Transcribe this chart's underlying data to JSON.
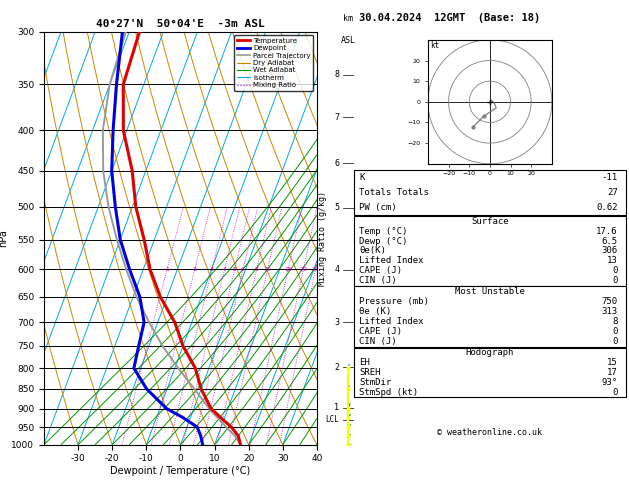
{
  "title_left": "40°27'N  50°04'E  -3m ASL",
  "title_right": "30.04.2024  12GMT  (Base: 18)",
  "xlabel": "Dewpoint / Temperature (°C)",
  "ylabel_left": "hPa",
  "pressure_ticks": [
    300,
    350,
    400,
    450,
    500,
    550,
    600,
    650,
    700,
    750,
    800,
    850,
    900,
    950,
    1000
  ],
  "temp_ticks": [
    -30,
    -20,
    -10,
    0,
    10,
    20,
    30,
    40
  ],
  "km_ticks": [
    1,
    2,
    3,
    4,
    5,
    6,
    7,
    8
  ],
  "km_pressures": [
    898,
    798,
    700,
    601,
    501,
    440,
    385,
    340
  ],
  "lcl_pressure": 930,
  "mixing_ratio_vals": [
    1,
    2,
    3,
    4,
    5,
    6,
    8,
    10,
    15,
    20,
    25
  ],
  "p_min": 300,
  "p_max": 1000,
  "t_min": -40,
  "t_max": 40,
  "skew": 45.0,
  "colors": {
    "temperature": "#dd0000",
    "dewpoint": "#0000dd",
    "parcel": "#999999",
    "dry_adiabat": "#cc8800",
    "wet_adiabat": "#009900",
    "isotherm": "#00aadd",
    "mixing_ratio": "#cc00cc",
    "background": "#ffffff",
    "grid": "#000000"
  },
  "legend_entries": [
    {
      "label": "Temperature",
      "color": "#dd0000",
      "lw": 2.0,
      "ls": "solid"
    },
    {
      "label": "Dewpoint",
      "color": "#0000dd",
      "lw": 2.0,
      "ls": "solid"
    },
    {
      "label": "Parcel Trajectory",
      "color": "#999999",
      "lw": 1.2,
      "ls": "solid"
    },
    {
      "label": "Dry Adiabat",
      "color": "#cc8800",
      "lw": 0.8,
      "ls": "solid"
    },
    {
      "label": "Wet Adiabat",
      "color": "#009900",
      "lw": 0.8,
      "ls": "solid"
    },
    {
      "label": "Isotherm",
      "color": "#00aadd",
      "lw": 0.8,
      "ls": "solid"
    },
    {
      "label": "Mixing Ratio",
      "color": "#cc00cc",
      "lw": 0.8,
      "ls": "dotted"
    }
  ],
  "temperature_profile": {
    "pressure": [
      1000,
      975,
      950,
      925,
      900,
      850,
      800,
      750,
      700,
      650,
      600,
      550,
      500,
      450,
      400,
      350,
      300
    ],
    "temp": [
      17.6,
      16.0,
      13.0,
      9.0,
      5.0,
      0.0,
      -4.0,
      -10.0,
      -15.0,
      -22.0,
      -28.0,
      -33.0,
      -39.0,
      -44.0,
      -51.0,
      -56.0,
      -57.0
    ]
  },
  "dewpoint_profile": {
    "pressure": [
      1000,
      975,
      950,
      925,
      900,
      850,
      800,
      750,
      700,
      650,
      600,
      550,
      500,
      450,
      400,
      350,
      300
    ],
    "temp": [
      6.5,
      5.0,
      3.0,
      -2.0,
      -8.0,
      -16.0,
      -22.0,
      -23.0,
      -24.0,
      -28.0,
      -34.0,
      -40.0,
      -45.0,
      -50.0,
      -54.0,
      -58.0,
      -62.0
    ]
  },
  "parcel_profile": {
    "pressure": [
      1000,
      975,
      950,
      925,
      900,
      850,
      800,
      750,
      700,
      650,
      600,
      550,
      500,
      450,
      400,
      350,
      300
    ],
    "temp": [
      17.6,
      15.0,
      11.5,
      8.0,
      4.5,
      -2.0,
      -9.0,
      -16.0,
      -22.5,
      -29.0,
      -35.0,
      -41.0,
      -47.0,
      -52.5,
      -57.0,
      -60.0,
      -61.0
    ]
  },
  "wind_levels_p": [
    1000,
    975,
    950,
    925,
    900,
    850,
    800
  ],
  "wind_levels_spd": [
    2,
    3,
    5,
    5,
    5,
    5,
    5
  ],
  "wind_levels_dir": [
    90,
    100,
    110,
    120,
    130,
    140,
    150
  ],
  "hodo_u": [
    0.5,
    1.0,
    1.5,
    2.0,
    2.5,
    3.0,
    -3.0,
    -8.0
  ],
  "hodo_v": [
    0.5,
    0.5,
    0.0,
    -0.5,
    -1.5,
    -3.0,
    -7.0,
    -12.0
  ],
  "table_rows_main": [
    [
      "K",
      "-11"
    ],
    [
      "Totals Totals",
      "27"
    ],
    [
      "PW (cm)",
      "0.62"
    ]
  ],
  "table_surface_title": "Surface",
  "table_surface_rows": [
    [
      "Temp (°C)",
      "17.6"
    ],
    [
      "Dewp (°C)",
      "6.5"
    ],
    [
      "θe(K)",
      "306"
    ],
    [
      "Lifted Index",
      "13"
    ],
    [
      "CAPE (J)",
      "0"
    ],
    [
      "CIN (J)",
      "0"
    ]
  ],
  "table_mu_title": "Most Unstable",
  "table_mu_rows": [
    [
      "Pressure (mb)",
      "750"
    ],
    [
      "θe (K)",
      "313"
    ],
    [
      "Lifted Index",
      "8"
    ],
    [
      "CAPE (J)",
      "0"
    ],
    [
      "CIN (J)",
      "0"
    ]
  ],
  "table_hodo_title": "Hodograph",
  "table_hodo_rows": [
    [
      "EH",
      "15"
    ],
    [
      "SREH",
      "17"
    ],
    [
      "StmDir",
      "93°"
    ],
    [
      "StmSpd (kt)",
      "0"
    ]
  ],
  "copyright": "© weatheronline.co.uk"
}
